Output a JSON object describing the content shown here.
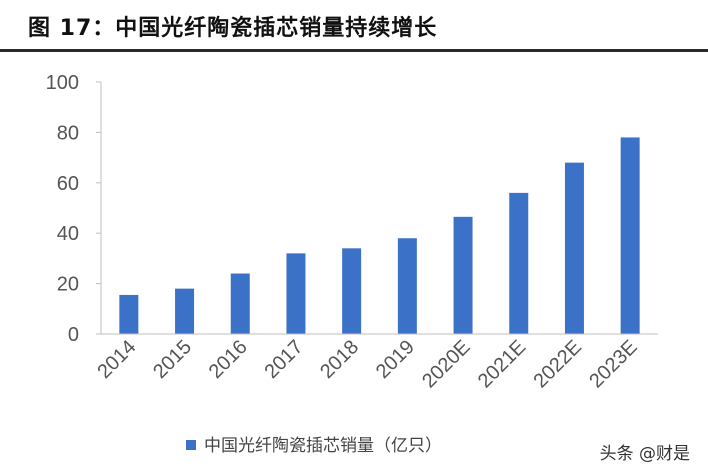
{
  "chart_data": {
    "type": "bar",
    "title": "图 17：中国光纤陶瓷插芯销量持续增长",
    "categories": [
      "2014",
      "2015",
      "2016",
      "2017",
      "2018",
      "2019",
      "2020E",
      "2021E",
      "2022E",
      "2023E"
    ],
    "series": [
      {
        "name": "中国光纤陶瓷插芯销量（亿只）",
        "values": [
          15.5,
          18,
          24,
          32,
          34,
          38,
          46.5,
          56,
          68,
          78
        ]
      }
    ],
    "yticks": [
      "0",
      "20",
      "40",
      "60",
      "80",
      "100"
    ],
    "ylim": [
      0,
      100
    ],
    "grid": false,
    "legend": "bottom",
    "bar_color": "#3b72c7"
  },
  "watermark": "头条 @财是"
}
